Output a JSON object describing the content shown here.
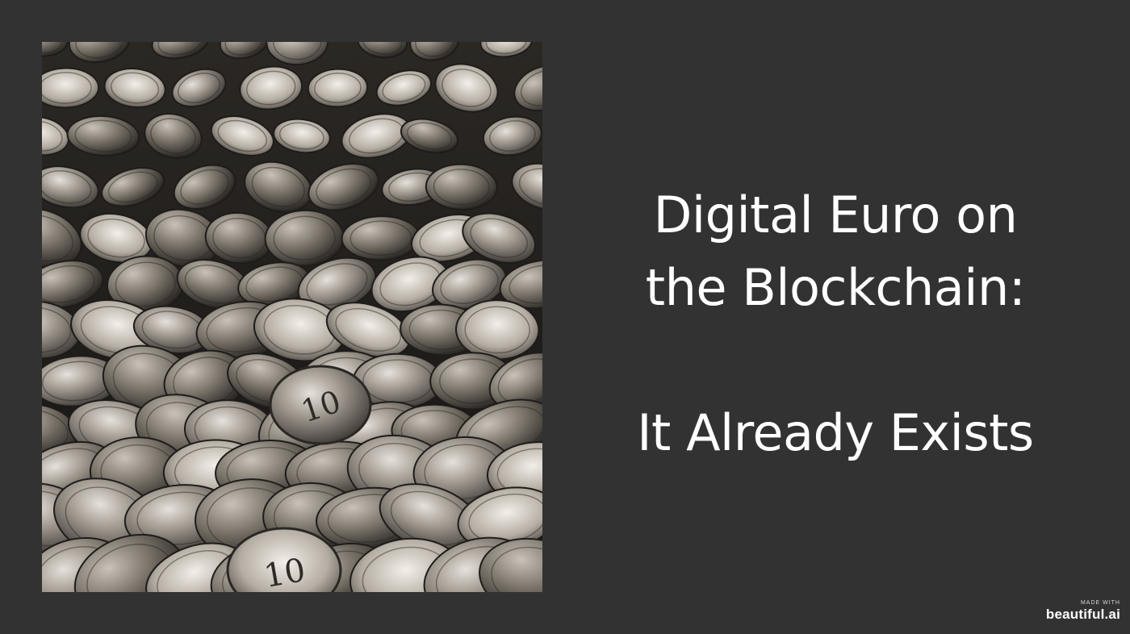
{
  "slide": {
    "title_line_1": "Digital Euro on",
    "title_line_2": "the Blockchain:",
    "title_line_3": "It Already Exists"
  },
  "photo": {
    "subject": "coins-photo",
    "coin_labels": [
      "10",
      "10"
    ]
  },
  "watermark": {
    "made_with": "MADE WITH",
    "brand": "beautiful.ai"
  },
  "colors": {
    "background": "#333232",
    "text": "#ffffff"
  }
}
